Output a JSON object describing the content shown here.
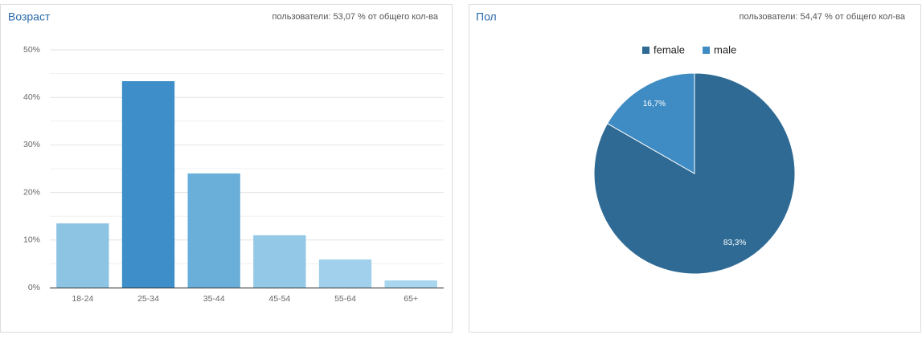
{
  "chart_data": [
    {
      "type": "bar",
      "title": "Возраст",
      "subtitle": "пользователи: 53,07 % от общего кол-ва",
      "categories": [
        "18-24",
        "25-34",
        "35-44",
        "45-54",
        "55-64",
        "65+"
      ],
      "values": [
        13.5,
        43.4,
        24.0,
        11.0,
        5.9,
        1.5
      ],
      "colors": [
        "#8ec4e3",
        "#3d8ec9",
        "#6aafd9",
        "#93c8e6",
        "#a0d0eb",
        "#a8d6ee"
      ],
      "ylim": [
        0,
        50
      ],
      "yticks": [
        {
          "value": 0,
          "label": "0%"
        },
        {
          "value": 10,
          "label": "10%"
        },
        {
          "value": 20,
          "label": "20%"
        },
        {
          "value": 30,
          "label": "30%"
        },
        {
          "value": 40,
          "label": "40%"
        },
        {
          "value": 50,
          "label": "50%"
        }
      ],
      "minor_yticks": [
        5,
        15,
        25,
        35,
        45
      ],
      "grid": true
    },
    {
      "type": "pie",
      "title": "Пол",
      "subtitle": "пользователи: 54,47 % от общего кол-ва",
      "categories": [
        "female",
        "male"
      ],
      "values": [
        83.3,
        16.7
      ],
      "value_labels": [
        "83,3%",
        "16,7%"
      ],
      "colors": [
        "#2e6a94",
        "#3f8cc4"
      ],
      "legend": "top"
    }
  ]
}
